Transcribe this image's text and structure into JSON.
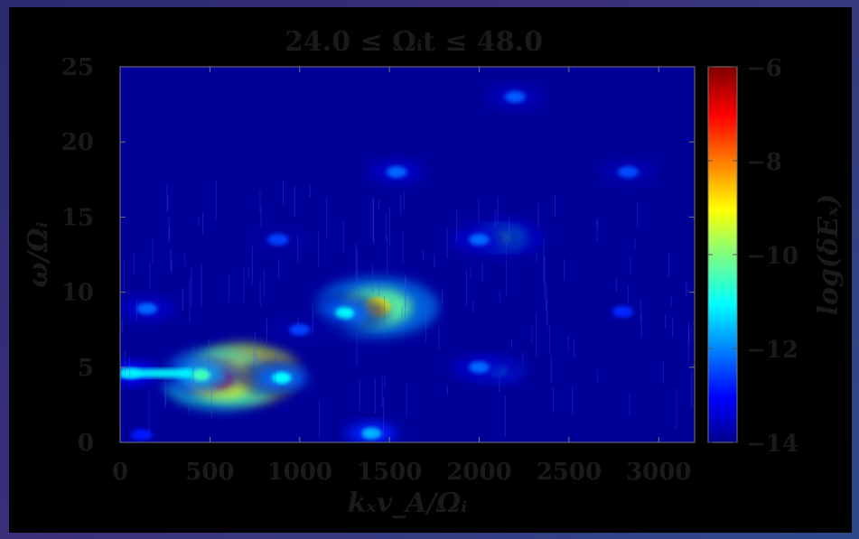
{
  "chart_data": {
    "type": "heatmap",
    "title": "24.0 ≤ Ωᵢt ≤ 48.0",
    "xlabel": "kₓv_A/Ωᵢ",
    "ylabel": "ω/Ωᵢ",
    "colorbar_label": "log(δEₓ)",
    "xlim": [
      0,
      3200
    ],
    "ylim": [
      0,
      25
    ],
    "clim": [
      -14,
      -6
    ],
    "colormap": "jet",
    "xticks": [
      0,
      500,
      1000,
      1500,
      2000,
      2500,
      3000
    ],
    "xtick_labels": [
      "0",
      "500",
      "1000",
      "1500",
      "2000",
      "2500",
      "3000"
    ],
    "yticks": [
      0,
      5,
      10,
      15,
      20,
      25
    ],
    "ytick_labels": [
      "0",
      "5",
      "10",
      "15",
      "20",
      "25"
    ],
    "cticks": [
      -14,
      -12,
      -10,
      -8,
      -6
    ],
    "ctick_labels": [
      "−14",
      "−12",
      "−10",
      "−8",
      "−6"
    ],
    "background_level": -13.8,
    "features": [
      {
        "x": 700,
        "y": 4.6,
        "level": -6.5
      },
      {
        "x": 560,
        "y": 4.2,
        "level": -8.0
      },
      {
        "x": 450,
        "y": 4.5,
        "level": -10.5
      },
      {
        "x": 900,
        "y": 4.3,
        "level": -11.0
      },
      {
        "x": 1430,
        "y": 9.0,
        "level": -9.0
      },
      {
        "x": 1250,
        "y": 8.6,
        "level": -11.0
      },
      {
        "x": 1000,
        "y": 7.5,
        "level": -12.5
      },
      {
        "x": 2120,
        "y": 13.6,
        "level": -10.5
      },
      {
        "x": 2000,
        "y": 13.5,
        "level": -12.2
      },
      {
        "x": 2100,
        "y": 4.8,
        "level": -11.5
      },
      {
        "x": 2000,
        "y": 5.0,
        "level": -12.2
      },
      {
        "x": 1540,
        "y": 18.0,
        "level": -12.2
      },
      {
        "x": 2200,
        "y": 23.0,
        "level": -12.3
      },
      {
        "x": 2830,
        "y": 18.0,
        "level": -12.4
      },
      {
        "x": 880,
        "y": 13.5,
        "level": -12.5
      },
      {
        "x": 150,
        "y": 8.9,
        "level": -12.2
      },
      {
        "x": 1400,
        "y": 0.6,
        "level": -11.6
      },
      {
        "x": 120,
        "y": 0.5,
        "level": -12.8
      },
      {
        "x": 2800,
        "y": 8.7,
        "level": -12.7
      },
      {
        "x": 60,
        "y": 4.6,
        "level": -11.8
      }
    ]
  }
}
